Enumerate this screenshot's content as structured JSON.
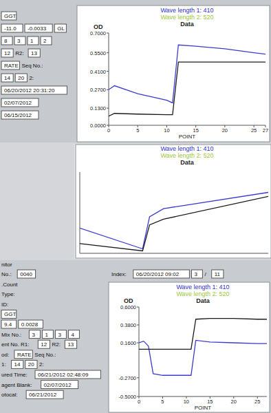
{
  "chart_data": [
    {
      "type": "line",
      "title": "Data",
      "y_label": "OD",
      "x_label": "POINT",
      "legend": "top",
      "grid": false,
      "x": [
        0,
        1,
        5,
        10,
        11,
        12,
        15,
        20,
        25,
        27
      ],
      "series": [
        {
          "name": "Wave length 1: 410",
          "color": "#3a3ad0",
          "values": [
            0.27,
            0.3,
            0.24,
            0.19,
            0.17,
            0.61,
            0.6,
            0.58,
            0.55,
            0.54
          ]
        },
        {
          "name": "Wave length 2: 520",
          "color": "#1a1a1a",
          "values": [
            0.07,
            0.09,
            0.085,
            0.08,
            0.08,
            0.48,
            0.48,
            0.48,
            0.48,
            0.48
          ]
        }
      ],
      "xlim": [
        0,
        27
      ],
      "xticks": [
        0,
        5,
        10,
        15,
        20,
        25,
        27
      ],
      "ylim": [
        0,
        0.7
      ],
      "yticks": [
        {
          "value": 0,
          "label": "0.0000"
        },
        {
          "value": 0.13,
          "label": "0.1300"
        },
        {
          "value": 0.27,
          "label": "0.2700"
        },
        {
          "value": 0.41,
          "label": "0.4100"
        },
        {
          "value": 0.55,
          "label": "0.5500"
        },
        {
          "value": 0.7,
          "label": "0.7000"
        }
      ]
    },
    {
      "type": "line",
      "title": "Data",
      "legend": "top",
      "grid": false,
      "tick_labels": false,
      "x": [
        0,
        9,
        10,
        12,
        27
      ],
      "series": [
        {
          "name": "Wave length 1: 410",
          "color": "#3a3ad0",
          "values": [
            0.31,
            0.055,
            0.45,
            0.55,
            0.75
          ]
        },
        {
          "name": "Wave length 2: 520",
          "color": "#1a1a1a",
          "values": [
            0.12,
            0.03,
            0.35,
            0.42,
            0.7
          ]
        }
      ],
      "xlim": [
        0,
        27
      ],
      "ylim": [
        0,
        1
      ]
    },
    {
      "type": "line",
      "title": "Data",
      "y_label": "OD",
      "x_label": "POINT",
      "legend": "top",
      "grid": false,
      "x": [
        0,
        1,
        2,
        3,
        5,
        10,
        11,
        12,
        15,
        20,
        25,
        27
      ],
      "series": [
        {
          "name": "Wave length 1: 410",
          "color": "#3a3ad0",
          "values": [
            0.16,
            0.18,
            0.12,
            -0.22,
            -0.24,
            -0.24,
            -0.24,
            0.19,
            0.17,
            0.16,
            0.15,
            0.15
          ]
        },
        {
          "name": "Wave length 2: 520",
          "color": "#1a1a1a",
          "values": [
            0.08,
            0.08,
            0.08,
            0.08,
            0.08,
            0.08,
            0.08,
            0.45,
            0.46,
            0.46,
            0.45,
            0.45
          ]
        }
      ],
      "xlim": [
        0,
        27
      ],
      "xticks": [
        0,
        5,
        10,
        15,
        20,
        25
      ],
      "ylim": [
        -0.5,
        0.6
      ],
      "yticks": [
        {
          "value": -0.5,
          "label": "-0.5000"
        },
        {
          "value": -0.27,
          "label": "-0.2700"
        },
        {
          "value": 0.16,
          "label": "0.1600"
        },
        {
          "value": 0.38,
          "label": "0.3800"
        },
        {
          "value": 0.6,
          "label": "0.6000"
        }
      ]
    }
  ],
  "forms": [
    {
      "rows": [
        [
          {
            "value": "GGT"
          }
        ],
        [
          {
            "value": "-11.0"
          },
          {
            "value": "-0.0033"
          },
          {
            "value": "GL"
          }
        ],
        [
          {
            "value": "8"
          },
          {
            "value": "3"
          },
          {
            "value": "1"
          },
          {
            "value": "2"
          }
        ],
        [
          {
            "value": "12"
          },
          {
            "label": "R2:"
          },
          {
            "value": "13"
          }
        ],
        [
          {
            "value": "RATE"
          },
          {
            "label": "Seq No.:"
          }
        ],
        [
          {
            "value": "14"
          },
          {
            "value": "20"
          },
          {
            "label": "2:"
          }
        ],
        [
          {
            "value": "06/20/2012 20:31:20"
          }
        ],
        [
          {
            "value": "02/07/2012"
          }
        ],
        [
          {
            "value": "06/15/2012"
          }
        ]
      ]
    },
    {
      "title": "nitor",
      "index_row": [
        {
          "label": "Index:"
        },
        {
          "value": "06/20/2012 09:02"
        },
        {
          "value": "3"
        },
        {
          "label": "/"
        },
        {
          "value": "11"
        }
      ],
      "rows": [
        [
          {
            "label": "No.:"
          },
          {
            "value": "0040"
          }
        ],
        [
          {
            "label": ".Count"
          }
        ],
        [
          {
            "label": "Type:"
          }
        ],
        [
          {
            "label": "ID:"
          }
        ],
        [
          {
            "value": "GGT"
          }
        ],
        [
          {
            "value": "9.4"
          },
          {
            "value": "0.0028"
          }
        ],
        [
          {
            "label": "Mix No.:"
          },
          {
            "value": "3"
          },
          {
            "value": "1"
          },
          {
            "value": "3"
          },
          {
            "value": "4"
          }
        ],
        [
          {
            "label": "ent No. R1:"
          },
          {
            "value": "12"
          },
          {
            "label": "R2:"
          },
          {
            "value": "13"
          }
        ],
        [
          {
            "label": "od:"
          },
          {
            "value": "RATE"
          },
          {
            "label": "Seq No.:"
          }
        ],
        [
          {
            "label": "1:"
          },
          {
            "value": "14"
          },
          {
            "value": "20"
          },
          {
            "label": "2:"
          }
        ],
        [
          {
            "label": "ured Time:"
          },
          {
            "value": "06/21/2012 02:48:09"
          }
        ],
        [
          {
            "label": "agent Blank:"
          },
          {
            "value": "02/07/2012"
          }
        ],
        [
          {
            "label": "otocal:"
          },
          {
            "value": "06/21/2012"
          }
        ]
      ]
    }
  ]
}
